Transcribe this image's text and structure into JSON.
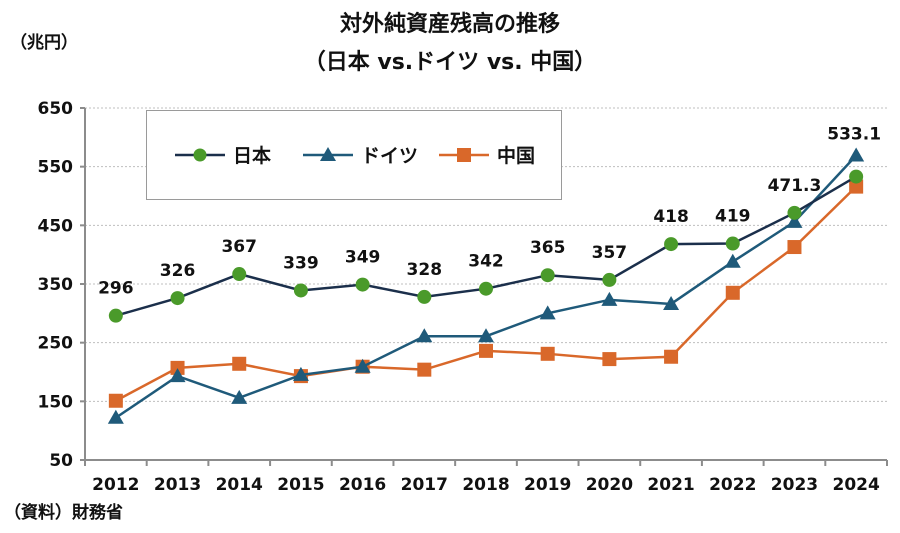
{
  "header": {
    "title_line1": "対外純資産残高の推移",
    "title_line2": "（日本 vs.ドイツ vs. 中国）",
    "unit_label": "（兆円）"
  },
  "footer": {
    "source": "（資料）財務省"
  },
  "colors": {
    "japan_line": "#1b2f4b",
    "japan_marker": "#4a9a2a",
    "germany": "#1f5a7a",
    "china": "#d9682a",
    "grid": "#bfbfbf",
    "axis": "#8c8c8c"
  },
  "chart_data": {
    "type": "line",
    "title": "対外純資産残高の推移（日本 vs.ドイツ vs. 中国）",
    "xlabel": "",
    "ylabel": "（兆円）",
    "categories": [
      "2012",
      "2013",
      "2014",
      "2015",
      "2016",
      "2017",
      "2018",
      "2019",
      "2020",
      "2021",
      "2022",
      "2023",
      "2024"
    ],
    "ylim": [
      50,
      650
    ],
    "yticks": [
      50,
      150,
      250,
      350,
      450,
      550,
      650
    ],
    "grid": true,
    "legend_position": "top-left",
    "series": [
      {
        "name": "日本",
        "marker": "circle",
        "values": [
          296,
          326,
          367,
          339,
          349,
          328,
          342,
          365,
          357,
          418,
          419,
          471.3,
          533.1
        ],
        "labels": [
          "296",
          "326",
          "367",
          "339",
          "349",
          "328",
          "342",
          "365",
          "357",
          "418",
          "419",
          "471.3",
          "533.1"
        ]
      },
      {
        "name": "ドイツ",
        "marker": "triangle",
        "values": [
          122,
          193,
          156,
          195,
          209,
          261,
          261,
          300,
          323,
          316,
          388,
          456,
          569
        ]
      },
      {
        "name": "中国",
        "marker": "square",
        "values": [
          151,
          207,
          214,
          193,
          209,
          204,
          236,
          231,
          222,
          226,
          335,
          413,
          516
        ]
      }
    ]
  }
}
